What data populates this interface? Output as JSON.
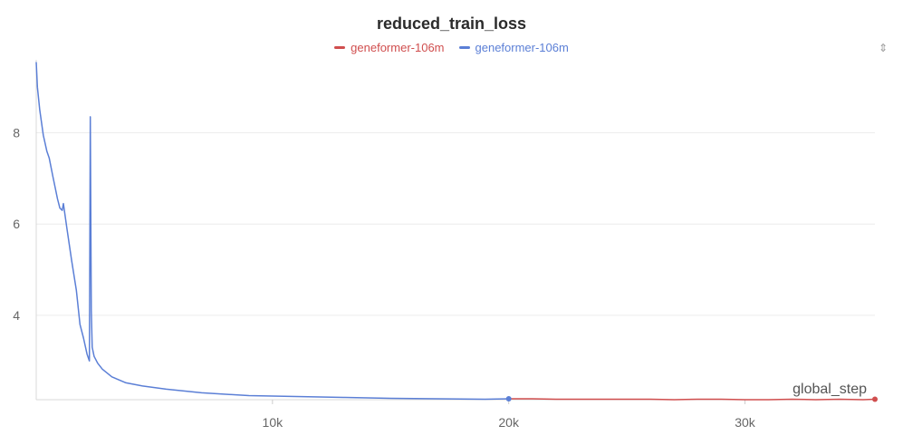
{
  "chart_data": {
    "type": "line",
    "title": "reduced_train_loss",
    "xlabel": "global_step",
    "ylabel": "",
    "xlim": [
      0,
      35500
    ],
    "ylim": [
      2.15,
      9.6
    ],
    "x_ticks": [
      10000,
      20000,
      30000
    ],
    "x_tick_labels": [
      "10k",
      "20k",
      "30k"
    ],
    "y_ticks": [
      4,
      6,
      8
    ],
    "y_tick_labels": [
      "4",
      "6",
      "8"
    ],
    "grid": "horizontal",
    "legend_position": "top-center",
    "series": [
      {
        "name": "geneformer-106m",
        "color": "#d04e4e",
        "x": [
          20000,
          21000,
          22000,
          23000,
          24000,
          25000,
          26000,
          27000,
          28000,
          29000,
          30000,
          31000,
          32000,
          33000,
          34000,
          35000,
          35500
        ],
        "y": [
          2.17,
          2.17,
          2.16,
          2.16,
          2.16,
          2.16,
          2.16,
          2.15,
          2.16,
          2.16,
          2.15,
          2.15,
          2.16,
          2.15,
          2.16,
          2.15,
          2.16
        ]
      },
      {
        "name": "geneformer-106m",
        "color": "#5b7fd6",
        "x": [
          0,
          50,
          150,
          300,
          450,
          550,
          700,
          800,
          900,
          1000,
          1100,
          1150,
          1300,
          1500,
          1700,
          1850,
          2000,
          2150,
          2250,
          2290,
          2330,
          2370,
          2450,
          2600,
          2800,
          3200,
          3800,
          4500,
          5500,
          7000,
          9000,
          11000,
          13000,
          15000,
          17000,
          19000,
          20000
        ],
        "y": [
          9.55,
          9.0,
          8.5,
          7.95,
          7.6,
          7.45,
          7.05,
          6.8,
          6.55,
          6.35,
          6.3,
          6.45,
          5.9,
          5.2,
          4.55,
          3.8,
          3.5,
          3.15,
          3.0,
          8.35,
          4.1,
          3.3,
          3.1,
          2.95,
          2.82,
          2.65,
          2.52,
          2.45,
          2.38,
          2.3,
          2.24,
          2.22,
          2.2,
          2.18,
          2.17,
          2.16,
          2.17
        ]
      }
    ]
  }
}
